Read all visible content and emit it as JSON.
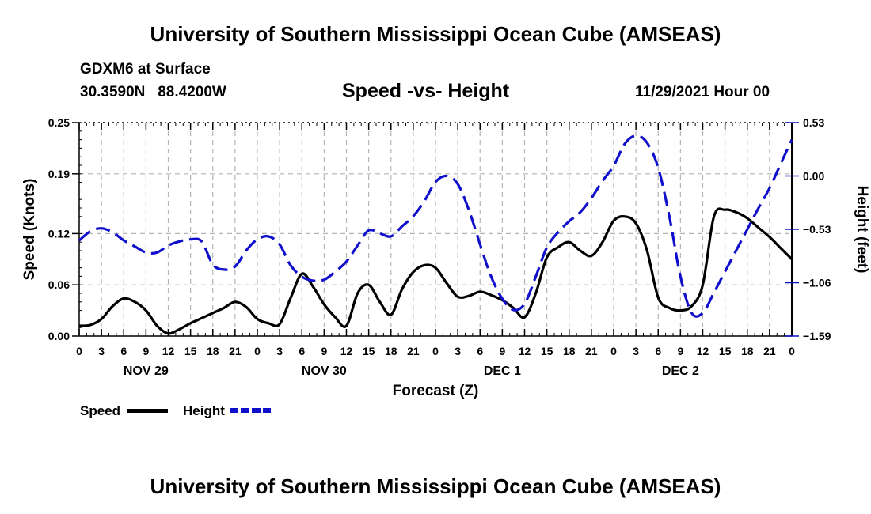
{
  "header": {
    "title": "University of Southern Mississippi Ocean Cube (AMSEAS)",
    "station": "GDXM6 at Surface",
    "location": "30.3590N   88.4200W",
    "plot_title": "Speed -vs- Height",
    "date_time": "11/29/2021 Hour 00"
  },
  "footer": {
    "title": "University of Southern Mississippi Ocean Cube (AMSEAS)"
  },
  "legend": {
    "speed_label": "Speed",
    "height_label": "Height"
  },
  "colors": {
    "speed": "#000000",
    "height": "#1010cc",
    "grid": "#b4b4b4"
  },
  "chart_data": {
    "type": "line",
    "title": "Speed -vs- Height",
    "xlabel": "Forecast (Z)",
    "ylabel": "Speed (Knots)",
    "y2label": "Height (feet)",
    "xlim": [
      0,
      96
    ],
    "ylim": [
      0,
      0.25
    ],
    "y2lim": [
      -1.59,
      0.53
    ],
    "x_ticks": [
      0,
      3,
      6,
      9,
      12,
      15,
      18,
      21,
      24,
      27,
      30,
      33,
      36,
      39,
      42,
      45,
      48,
      51,
      54,
      57,
      60,
      63,
      66,
      69,
      72,
      75,
      78,
      81,
      84,
      87,
      90,
      93,
      96
    ],
    "x_tick_labels": [
      "0",
      "3",
      "6",
      "9",
      "12",
      "15",
      "18",
      "21",
      "0",
      "3",
      "6",
      "9",
      "12",
      "15",
      "18",
      "21",
      "0",
      "3",
      "6",
      "9",
      "12",
      "15",
      "18",
      "21",
      "0",
      "3",
      "6",
      "9",
      "12",
      "15",
      "18",
      "21",
      "0"
    ],
    "day_labels": [
      {
        "x": 9,
        "label": "NOV 29"
      },
      {
        "x": 33,
        "label": "NOV 30"
      },
      {
        "x": 57,
        "label": "DEC 1"
      },
      {
        "x": 81,
        "label": "DEC 2"
      }
    ],
    "y_ticks": [
      0.0,
      0.06,
      0.12,
      0.19,
      0.25
    ],
    "y_tick_labels": [
      "0.00",
      "0.06",
      "0.12",
      "0.19",
      "0.25"
    ],
    "y2_ticks": [
      -1.59,
      -1.06,
      -0.53,
      0.0,
      0.53
    ],
    "y2_tick_labels": [
      "−1.59",
      "−1.06",
      "−0.53",
      "0.00",
      "0.53"
    ],
    "grid": true,
    "series": [
      {
        "name": "Speed",
        "axis": "left",
        "style": "solid",
        "x": [
          0,
          1.5,
          3,
          4.5,
          6,
          7.5,
          9,
          10.5,
          12,
          13.5,
          15,
          16.5,
          18,
          19.5,
          21,
          22.5,
          24,
          25.5,
          27,
          28.5,
          30,
          31.5,
          33,
          34.5,
          36,
          37.5,
          39,
          40.5,
          42,
          43.5,
          45,
          46.5,
          48,
          49.5,
          51,
          52.5,
          54,
          55.5,
          57,
          58.5,
          60,
          61.5,
          63,
          64.5,
          66,
          67.5,
          69,
          70.5,
          72,
          73.5,
          75,
          76.5,
          78,
          79.5,
          81,
          82.5,
          84,
          85.5,
          87,
          88.5,
          90,
          91.5,
          93,
          94.5,
          96
        ],
        "values": [
          0.012,
          0.013,
          0.02,
          0.035,
          0.044,
          0.04,
          0.03,
          0.012,
          0.003,
          0.008,
          0.015,
          0.021,
          0.027,
          0.033,
          0.04,
          0.034,
          0.02,
          0.015,
          0.014,
          0.045,
          0.073,
          0.058,
          0.037,
          0.022,
          0.012,
          0.05,
          0.06,
          0.04,
          0.025,
          0.055,
          0.075,
          0.083,
          0.08,
          0.062,
          0.046,
          0.047,
          0.052,
          0.048,
          0.042,
          0.033,
          0.022,
          0.05,
          0.092,
          0.104,
          0.11,
          0.1,
          0.094,
          0.11,
          0.135,
          0.14,
          0.132,
          0.1,
          0.045,
          0.033,
          0.03,
          0.035,
          0.06,
          0.14,
          0.148,
          0.145,
          0.138,
          0.127,
          0.116,
          0.103,
          0.09
        ]
      },
      {
        "name": "Height",
        "axis": "right",
        "style": "dashed",
        "x": [
          0,
          1.5,
          3,
          4.5,
          6,
          7.5,
          9,
          10.5,
          12,
          13.5,
          15,
          16.5,
          18,
          19.5,
          21,
          22.5,
          24,
          25.5,
          27,
          28.5,
          30,
          31.5,
          33,
          34.5,
          36,
          37.5,
          39,
          40.5,
          42,
          43.5,
          45,
          46.5,
          48,
          49.5,
          51,
          52.5,
          54,
          55.5,
          57,
          58.5,
          60,
          61.5,
          63,
          64.5,
          66,
          67.5,
          69,
          70.5,
          72,
          73.5,
          75,
          76.5,
          78,
          79.5,
          81,
          82.5,
          84,
          85.5,
          87,
          88.5,
          90,
          91.5,
          93,
          94.5,
          96
        ],
        "values": [
          -0.64,
          -0.55,
          -0.52,
          -0.56,
          -0.64,
          -0.7,
          -0.76,
          -0.76,
          -0.69,
          -0.65,
          -0.63,
          -0.65,
          -0.88,
          -0.93,
          -0.9,
          -0.74,
          -0.63,
          -0.6,
          -0.68,
          -0.89,
          -1.0,
          -1.04,
          -1.03,
          -0.95,
          -0.85,
          -0.69,
          -0.54,
          -0.57,
          -0.6,
          -0.5,
          -0.4,
          -0.25,
          -0.06,
          0.0,
          -0.08,
          -0.34,
          -0.68,
          -1.0,
          -1.22,
          -1.33,
          -1.27,
          -1.0,
          -0.71,
          -0.56,
          -0.45,
          -0.36,
          -0.22,
          -0.05,
          0.1,
          0.32,
          0.4,
          0.33,
          0.08,
          -0.4,
          -1.0,
          -1.36,
          -1.36,
          -1.16,
          -0.95,
          -0.74,
          -0.53,
          -0.32,
          -0.12,
          0.12,
          0.36
        ]
      }
    ]
  }
}
